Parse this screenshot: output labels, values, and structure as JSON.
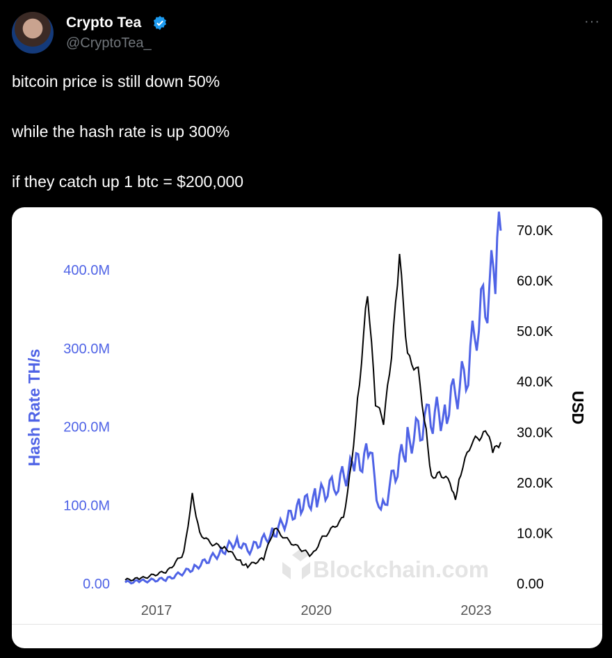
{
  "author": {
    "name": "Crypto Tea",
    "handle": "@CryptoTea_",
    "verified": true
  },
  "menu_icon": "more-horizontal-icon",
  "tweet": {
    "lines": [
      "bitcoin price is still down 50%",
      "while the hash rate is up 300%",
      "if they catch up 1 btc = $200,000"
    ]
  },
  "colors": {
    "hash": "#4f63e6",
    "price": "#000000",
    "badge": "#1d9bf0"
  },
  "chart_data": {
    "type": "line",
    "watermark": "Blockchain.com",
    "ylabel_left": "Hash Rate TH/s",
    "ylabel_right": "USD",
    "xticks": [
      "2017",
      "2020",
      "2023"
    ],
    "yticks_left": [
      "0.00",
      "100.0M",
      "200.0M",
      "300.0M",
      "400.0M"
    ],
    "yticks_right": [
      "0.00",
      "10.0K",
      "20.0K",
      "30.0K",
      "40.0K",
      "50.0K",
      "60.0K",
      "70.0K"
    ],
    "xlim": [
      2016.7,
      2023.75
    ],
    "ylim_left": [
      0,
      450
    ],
    "ylim_right": [
      0,
      70
    ],
    "series": [
      {
        "name": "Hash Rate (M TH/s)",
        "axis": "left",
        "points": [
          [
            2016.7,
            1.5
          ],
          [
            2017.0,
            3
          ],
          [
            2017.5,
            6
          ],
          [
            2018.0,
            20
          ],
          [
            2018.5,
            40
          ],
          [
            2018.8,
            55
          ],
          [
            2019.0,
            42
          ],
          [
            2019.5,
            65
          ],
          [
            2020.0,
            100
          ],
          [
            2020.3,
            110
          ],
          [
            2020.7,
            130
          ],
          [
            2021.0,
            150
          ],
          [
            2021.3,
            165
          ],
          [
            2021.5,
            88
          ],
          [
            2021.7,
            130
          ],
          [
            2022.0,
            180
          ],
          [
            2022.4,
            210
          ],
          [
            2022.7,
            220
          ],
          [
            2022.9,
            245
          ],
          [
            2023.1,
            265
          ],
          [
            2023.3,
            330
          ],
          [
            2023.5,
            370
          ],
          [
            2023.65,
            400
          ],
          [
            2023.75,
            450
          ]
        ]
      },
      {
        "name": "Price (K USD)",
        "axis": "right",
        "points": [
          [
            2016.7,
            0.7
          ],
          [
            2017.0,
            1
          ],
          [
            2017.5,
            2.5
          ],
          [
            2017.8,
            6
          ],
          [
            2017.96,
            17.5
          ],
          [
            2018.1,
            10
          ],
          [
            2018.3,
            8
          ],
          [
            2018.6,
            7
          ],
          [
            2018.9,
            4
          ],
          [
            2019.0,
            3.5
          ],
          [
            2019.3,
            5
          ],
          [
            2019.5,
            11
          ],
          [
            2019.7,
            9
          ],
          [
            2019.9,
            7.5
          ],
          [
            2020.2,
            5.5
          ],
          [
            2020.4,
            9
          ],
          [
            2020.6,
            11
          ],
          [
            2020.8,
            13
          ],
          [
            2020.95,
            24
          ],
          [
            2021.1,
            40
          ],
          [
            2021.25,
            58
          ],
          [
            2021.4,
            36
          ],
          [
            2021.55,
            32
          ],
          [
            2021.7,
            45
          ],
          [
            2021.85,
            65
          ],
          [
            2022.0,
            45
          ],
          [
            2022.2,
            42
          ],
          [
            2022.35,
            30
          ],
          [
            2022.45,
            21
          ],
          [
            2022.6,
            22
          ],
          [
            2022.8,
            20
          ],
          [
            2022.9,
            17
          ],
          [
            2023.0,
            22
          ],
          [
            2023.2,
            28
          ],
          [
            2023.5,
            30
          ],
          [
            2023.6,
            26
          ],
          [
            2023.75,
            28
          ]
        ]
      }
    ]
  }
}
